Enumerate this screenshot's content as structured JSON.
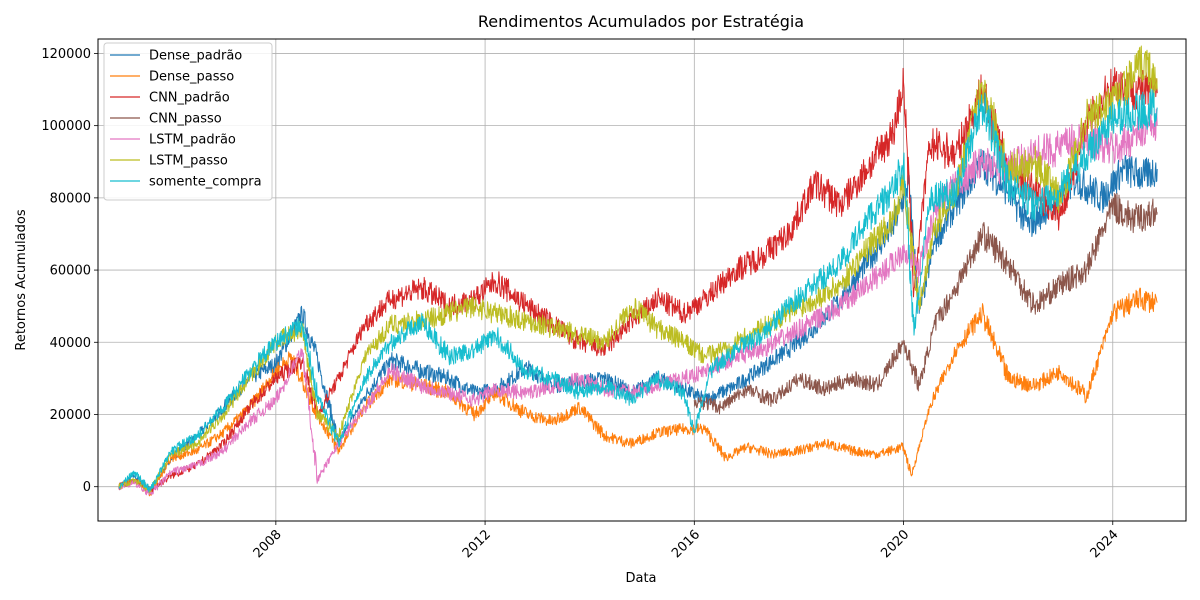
{
  "chart_data": {
    "type": "line",
    "title": "Rendimentos Acumulados por Estratégia",
    "xlabel": "Data",
    "ylabel": "Retornos Acumulados",
    "xlim": [
      2004.6,
      2025.4
    ],
    "ylim": [
      -9500,
      124000
    ],
    "x_ticks": [
      2008,
      2012,
      2016,
      2020,
      2024
    ],
    "y_ticks": [
      0,
      20000,
      40000,
      60000,
      80000,
      100000,
      120000
    ],
    "grid": true,
    "legend_position": "top-left",
    "series": [
      {
        "name": "Dense_padrão",
        "color": "#1f77b4",
        "x": [
          2005.0,
          2005.3,
          2005.6,
          2006.0,
          2006.5,
          2007.0,
          2007.5,
          2008.0,
          2008.5,
          2008.8,
          2009.2,
          2009.7,
          2010.2,
          2010.8,
          2011.3,
          2011.8,
          2012.2,
          2012.8,
          2013.3,
          2013.8,
          2014.3,
          2014.8,
          2015.3,
          2015.8,
          2016.2,
          2016.8,
          2017.3,
          2017.8,
          2018.3,
          2018.8,
          2019.3,
          2019.8,
          2020.1,
          2020.3,
          2020.6,
          2021.0,
          2021.5,
          2022.0,
          2022.4,
          2022.8,
          2023.3,
          2023.8,
          2024.2,
          2024.6,
          2024.85
        ],
        "y": [
          0,
          3000,
          -1000,
          8000,
          14000,
          22000,
          30000,
          34000,
          48000,
          35000,
          12000,
          25000,
          35000,
          32000,
          30000,
          26000,
          27000,
          33000,
          28000,
          29000,
          30000,
          26000,
          30000,
          27000,
          24000,
          28000,
          33000,
          38000,
          44000,
          52000,
          62000,
          72000,
          84000,
          48000,
          68000,
          78000,
          90000,
          82000,
          72000,
          78000,
          85000,
          80000,
          88000,
          86000,
          88000
        ]
      },
      {
        "name": "Dense_passo",
        "color": "#ff7f0e",
        "x": [
          2005.0,
          2005.3,
          2005.6,
          2006.0,
          2006.5,
          2007.0,
          2007.5,
          2008.0,
          2008.3,
          2008.8,
          2009.2,
          2009.7,
          2010.2,
          2010.8,
          2011.3,
          2011.8,
          2012.2,
          2012.8,
          2013.3,
          2013.8,
          2014.3,
          2014.8,
          2015.3,
          2015.8,
          2016.2,
          2016.6,
          2017.0,
          2017.5,
          2018.0,
          2018.5,
          2019.0,
          2019.5,
          2020.0,
          2020.15,
          2020.5,
          2021.0,
          2021.5,
          2022.0,
          2022.5,
          2023.0,
          2023.5,
          2024.0,
          2024.5,
          2024.85
        ],
        "y": [
          0,
          2000,
          -2000,
          8000,
          10000,
          15000,
          22000,
          32000,
          36000,
          20000,
          10000,
          22000,
          30000,
          28000,
          26000,
          20000,
          26000,
          20000,
          18000,
          22000,
          14000,
          12000,
          15000,
          16000,
          16000,
          8000,
          11000,
          9000,
          10000,
          12000,
          10000,
          9000,
          11000,
          3000,
          22000,
          38000,
          48000,
          30000,
          28000,
          32000,
          25000,
          48000,
          52000,
          51000
        ]
      },
      {
        "name": "CNN_padrão",
        "color": "#d62728",
        "x": [
          2005.0,
          2005.3,
          2005.6,
          2006.0,
          2006.5,
          2007.0,
          2007.5,
          2008.0,
          2008.5,
          2008.8,
          2009.2,
          2009.7,
          2010.2,
          2010.8,
          2011.3,
          2011.8,
          2012.2,
          2012.8,
          2013.3,
          2013.8,
          2014.3,
          2014.8,
          2015.3,
          2015.8,
          2016.2,
          2016.8,
          2017.3,
          2017.8,
          2018.3,
          2018.8,
          2019.3,
          2019.8,
          2020.0,
          2020.2,
          2020.5,
          2021.0,
          2021.5,
          2022.0,
          2022.5,
          2023.0,
          2023.5,
          2024.0,
          2024.5,
          2024.85
        ],
        "y": [
          0,
          2000,
          -1000,
          3000,
          6000,
          12000,
          22000,
          30000,
          35000,
          20000,
          30000,
          45000,
          52000,
          55000,
          50000,
          52000,
          57000,
          50000,
          45000,
          40000,
          38000,
          46000,
          52000,
          48000,
          52000,
          60000,
          64000,
          70000,
          84000,
          78000,
          88000,
          98000,
          112000,
          55000,
          95000,
          92000,
          110000,
          88000,
          82000,
          75000,
          100000,
          112000,
          110000,
          109000
        ]
      },
      {
        "name": "CNN_passo",
        "color": "#8c564b",
        "x": [
          2016.0,
          2016.5,
          2017.0,
          2017.5,
          2018.0,
          2018.5,
          2019.0,
          2019.5,
          2020.0,
          2020.3,
          2020.6,
          2021.0,
          2021.5,
          2022.0,
          2022.5,
          2023.0,
          2023.5,
          2024.0,
          2024.4,
          2024.85
        ],
        "y": [
          24000,
          22000,
          27000,
          24000,
          30000,
          27000,
          30000,
          28000,
          40000,
          28000,
          45000,
          55000,
          70000,
          62000,
          50000,
          56000,
          60000,
          78000,
          74000,
          76000
        ]
      },
      {
        "name": "LSTM_padrão",
        "color": "#e377c2",
        "x": [
          2005.0,
          2005.3,
          2005.6,
          2006.0,
          2006.5,
          2007.0,
          2007.5,
          2008.0,
          2008.5,
          2008.8,
          2009.2,
          2009.7,
          2010.2,
          2010.8,
          2011.3,
          2011.8,
          2012.2,
          2012.8,
          2013.3,
          2013.8,
          2014.3,
          2014.8,
          2015.3,
          2015.8,
          2016.2,
          2016.8,
          2017.3,
          2017.8,
          2018.3,
          2018.8,
          2019.3,
          2019.8,
          2020.0,
          2020.3,
          2020.6,
          2021.0,
          2021.5,
          2022.0,
          2022.5,
          2023.0,
          2023.5,
          2024.0,
          2024.5,
          2024.85
        ],
        "y": [
          0,
          1000,
          -2000,
          4000,
          6000,
          10000,
          18000,
          24000,
          38000,
          2000,
          12000,
          22000,
          32000,
          28000,
          26000,
          24000,
          27000,
          26000,
          28000,
          30000,
          27000,
          26000,
          28000,
          30000,
          32000,
          36000,
          38000,
          42000,
          46000,
          50000,
          56000,
          62000,
          66000,
          60000,
          76000,
          84000,
          90000,
          88000,
          92000,
          94000,
          97000,
          93000,
          98000,
          100000
        ]
      },
      {
        "name": "LSTM_passo",
        "color": "#bcbd22",
        "x": [
          2005.0,
          2005.3,
          2005.6,
          2006.0,
          2006.5,
          2007.0,
          2007.5,
          2008.0,
          2008.5,
          2008.8,
          2009.2,
          2009.7,
          2010.2,
          2010.8,
          2011.3,
          2011.8,
          2012.2,
          2012.8,
          2013.3,
          2013.8,
          2014.3,
          2014.8,
          2015.3,
          2015.8,
          2016.2,
          2016.8,
          2017.3,
          2017.8,
          2018.3,
          2018.8,
          2019.3,
          2019.8,
          2020.0,
          2020.3,
          2020.6,
          2021.0,
          2021.5,
          2022.0,
          2022.5,
          2023.0,
          2023.5,
          2024.0,
          2024.6,
          2024.85
        ],
        "y": [
          0,
          2000,
          -1000,
          9000,
          12000,
          20000,
          30000,
          40000,
          44000,
          20000,
          14000,
          36000,
          45000,
          46000,
          48000,
          50000,
          48000,
          46000,
          44000,
          42000,
          40000,
          50000,
          44000,
          40000,
          36000,
          40000,
          44000,
          48000,
          52000,
          56000,
          66000,
          74000,
          84000,
          50000,
          72000,
          82000,
          112000,
          88000,
          90000,
          80000,
          102000,
          106000,
          118000,
          110000
        ]
      },
      {
        "name": "somente_compra",
        "color": "#17becf",
        "x": [
          2005.0,
          2005.3,
          2005.6,
          2006.0,
          2006.5,
          2007.0,
          2007.5,
          2008.0,
          2008.5,
          2008.8,
          2009.2,
          2009.7,
          2010.2,
          2010.8,
          2011.3,
          2011.8,
          2012.2,
          2012.8,
          2013.3,
          2013.8,
          2014.3,
          2014.8,
          2015.3,
          2015.8,
          2016.0,
          2016.3,
          2016.8,
          2017.3,
          2017.8,
          2018.3,
          2018.8,
          2019.3,
          2019.8,
          2020.0,
          2020.2,
          2020.5,
          2021.0,
          2021.5,
          2022.0,
          2022.5,
          2023.0,
          2023.5,
          2024.0,
          2024.5,
          2024.85
        ],
        "y": [
          0,
          4000,
          -1000,
          10000,
          14000,
          22000,
          32000,
          40000,
          45000,
          25000,
          12000,
          30000,
          40000,
          46000,
          36000,
          38000,
          42000,
          32000,
          30000,
          26000,
          28000,
          24000,
          30000,
          26000,
          15000,
          32000,
          38000,
          42000,
          50000,
          56000,
          62000,
          74000,
          82000,
          90000,
          42000,
          80000,
          82000,
          106000,
          84000,
          78000,
          82000,
          92000,
          102000,
          104000,
          105000
        ]
      }
    ]
  }
}
